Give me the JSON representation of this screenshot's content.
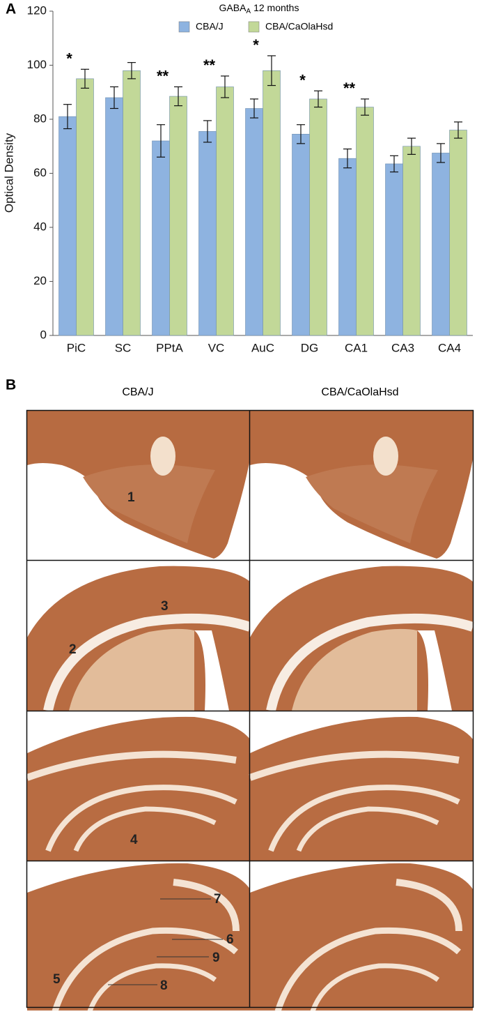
{
  "chart_data": {
    "type": "bar",
    "panel_label": "A",
    "title": {
      "main": "GABA",
      "sub": "A",
      "rest": "12 months"
    },
    "y_label": "Optical Density",
    "categories": [
      "PiC",
      "SC",
      "PPtA",
      "VC",
      "AuC",
      "DG",
      "CA1",
      "CA3",
      "CA4"
    ],
    "series": [
      {
        "name": "CBA/J",
        "color": "#8eb3e0",
        "values": [
          81,
          88,
          72,
          75.5,
          84,
          74.5,
          65.5,
          63.5,
          67.5
        ],
        "errors": [
          4.5,
          4,
          6,
          4,
          3.5,
          3.5,
          3.5,
          3,
          3.5
        ]
      },
      {
        "name": "CBA/CaOlaHsd",
        "color": "#c2d898",
        "values": [
          95,
          98,
          88.5,
          92,
          98,
          87.5,
          84.5,
          70,
          76
        ],
        "errors": [
          3.5,
          3,
          3.5,
          4,
          5.5,
          3,
          3,
          3,
          3
        ]
      }
    ],
    "annotations": [
      "*",
      null,
      "**",
      "**",
      "*",
      "*",
      "**",
      null,
      null
    ],
    "ylim": [
      0,
      120
    ],
    "yticks": [
      0,
      20,
      40,
      60,
      80,
      100,
      120
    ],
    "grid": false
  },
  "panel_b": {
    "label": "B",
    "columns": [
      "CBA/J",
      "CBA/CaOlaHsd"
    ],
    "region_labels": [
      "1",
      "2",
      "3",
      "4",
      "5",
      "6",
      "7",
      "8",
      "9"
    ]
  }
}
